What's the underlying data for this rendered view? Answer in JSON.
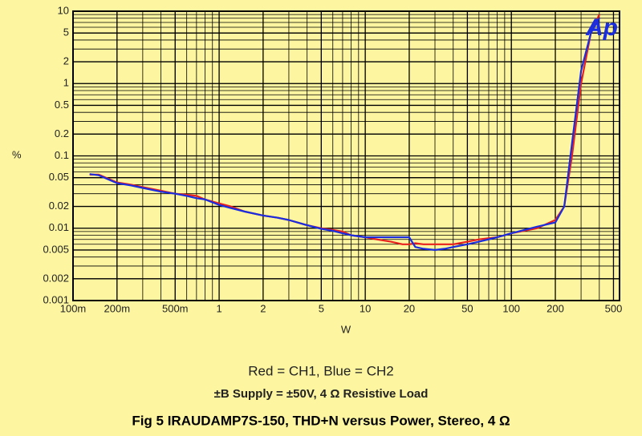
{
  "chart_data": {
    "type": "line",
    "title": "Fig 5 IRAUDAMP7S-150, THD+N versus Power, Stereo, 4 Ω",
    "subtitle": "±B Supply = ±50V,  4 Ω Resistive Load",
    "legend_text": "Red = CH1,  Blue  = CH2",
    "logo": "Ap",
    "x_label": "W",
    "y_label": "%",
    "x_scale": "log",
    "y_scale": "log",
    "grid": true,
    "x": [
      0.13,
      0.15,
      0.2,
      0.25,
      0.3,
      0.4,
      0.5,
      0.6,
      0.7,
      0.8,
      1,
      1.2,
      1.5,
      2,
      2.5,
      3,
      4,
      5,
      6,
      7,
      8,
      10,
      12,
      15,
      18,
      20,
      22,
      25,
      30,
      35,
      40,
      50,
      60,
      80,
      100,
      150,
      200,
      230,
      260,
      300,
      350,
      400
    ],
    "series": [
      {
        "name": "CH1",
        "color": "#e8201e",
        "values": [
          0.055,
          0.055,
          0.043,
          0.04,
          0.037,
          0.033,
          0.03,
          0.029,
          0.028,
          0.025,
          0.022,
          0.02,
          0.017,
          0.015,
          0.014,
          0.013,
          0.011,
          0.01,
          0.0095,
          0.009,
          0.008,
          0.0075,
          0.007,
          0.0065,
          0.006,
          0.006,
          0.0062,
          0.006,
          0.006,
          0.006,
          0.006,
          0.0065,
          0.007,
          0.0075,
          0.0085,
          0.01,
          0.013,
          0.02,
          0.1,
          1,
          5,
          9
        ]
      },
      {
        "name": "CH2",
        "color": "#1a2ee0",
        "values": [
          0.056,
          0.054,
          0.042,
          0.039,
          0.036,
          0.032,
          0.03,
          0.028,
          0.026,
          0.025,
          0.021,
          0.019,
          0.017,
          0.015,
          0.014,
          0.013,
          0.011,
          0.0098,
          0.0092,
          0.0085,
          0.008,
          0.0075,
          0.0075,
          0.0075,
          0.0075,
          0.0075,
          0.0055,
          0.0052,
          0.005,
          0.0052,
          0.0055,
          0.006,
          0.0065,
          0.0075,
          0.0085,
          0.0105,
          0.012,
          0.02,
          0.15,
          1.5,
          5,
          8
        ]
      }
    ],
    "xlim": [
      0.1,
      550
    ],
    "ylim": [
      0.001,
      10
    ],
    "xticks": [
      {
        "value": 0.1,
        "label": "100m"
      },
      {
        "value": 0.2,
        "label": "200m"
      },
      {
        "value": 0.5,
        "label": "500m"
      },
      1,
      2,
      5,
      10,
      20,
      50,
      100,
      200,
      500
    ],
    "yticks": [
      10,
      5,
      2,
      1,
      0.5,
      0.2,
      0.1,
      0.05,
      0.02,
      0.01,
      0.005,
      0.002,
      0.001
    ]
  }
}
